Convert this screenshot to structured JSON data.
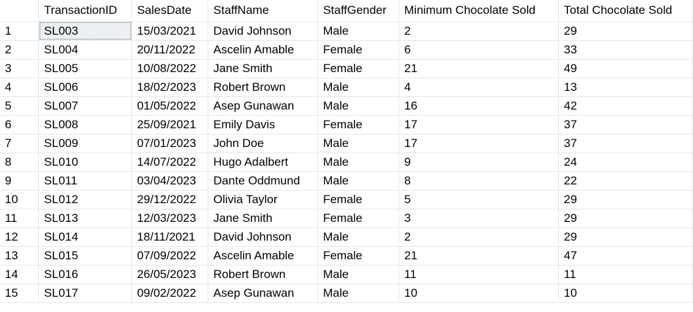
{
  "results_grid": {
    "columns": [
      "TransactionID",
      "SalesDate",
      "StaffName",
      "StaffGender",
      "Minimum Chocolate Sold",
      "Total Chocolate Sold"
    ],
    "selected_cell": {
      "row": 0,
      "col": 0
    },
    "rows": [
      {
        "num": "1",
        "cells": [
          "SL003",
          "15/03/2021",
          "David Johnson",
          "Male",
          "2",
          "29"
        ]
      },
      {
        "num": "2",
        "cells": [
          "SL004",
          "20/11/2022",
          "Ascelin Amable",
          "Female",
          "6",
          "33"
        ]
      },
      {
        "num": "3",
        "cells": [
          "SL005",
          "10/08/2022",
          "Jane Smith",
          "Female",
          "21",
          "49"
        ]
      },
      {
        "num": "4",
        "cells": [
          "SL006",
          "18/02/2023",
          "Robert Brown",
          "Male",
          "4",
          "13"
        ]
      },
      {
        "num": "5",
        "cells": [
          "SL007",
          "01/05/2022",
          "Asep Gunawan",
          "Male",
          "16",
          "42"
        ]
      },
      {
        "num": "6",
        "cells": [
          "SL008",
          "25/09/2021",
          "Emily Davis",
          "Female",
          "17",
          "37"
        ]
      },
      {
        "num": "7",
        "cells": [
          "SL009",
          "07/01/2023",
          "John Doe",
          "Male",
          "17",
          "37"
        ]
      },
      {
        "num": "8",
        "cells": [
          "SL010",
          "14/07/2022",
          "Hugo Adalbert",
          "Male",
          "9",
          "24"
        ]
      },
      {
        "num": "9",
        "cells": [
          "SL011",
          "03/04/2023",
          "Dante Oddmund",
          "Male",
          "8",
          "22"
        ]
      },
      {
        "num": "10",
        "cells": [
          "SL012",
          "29/12/2022",
          "Olivia Taylor",
          "Female",
          "5",
          "29"
        ]
      },
      {
        "num": "11",
        "cells": [
          "SL013",
          "12/03/2023",
          "Jane Smith",
          "Female",
          "3",
          "29"
        ]
      },
      {
        "num": "12",
        "cells": [
          "SL014",
          "18/11/2021",
          "David Johnson",
          "Male",
          "2",
          "29"
        ]
      },
      {
        "num": "13",
        "cells": [
          "SL015",
          "07/09/2022",
          "Ascelin Amable",
          "Female",
          "21",
          "47"
        ]
      },
      {
        "num": "14",
        "cells": [
          "SL016",
          "26/05/2023",
          "Robert Brown",
          "Male",
          "11",
          "11"
        ]
      },
      {
        "num": "15",
        "cells": [
          "SL017",
          "09/02/2022",
          "Asep Gunawan",
          "Male",
          "10",
          "10"
        ]
      }
    ]
  }
}
